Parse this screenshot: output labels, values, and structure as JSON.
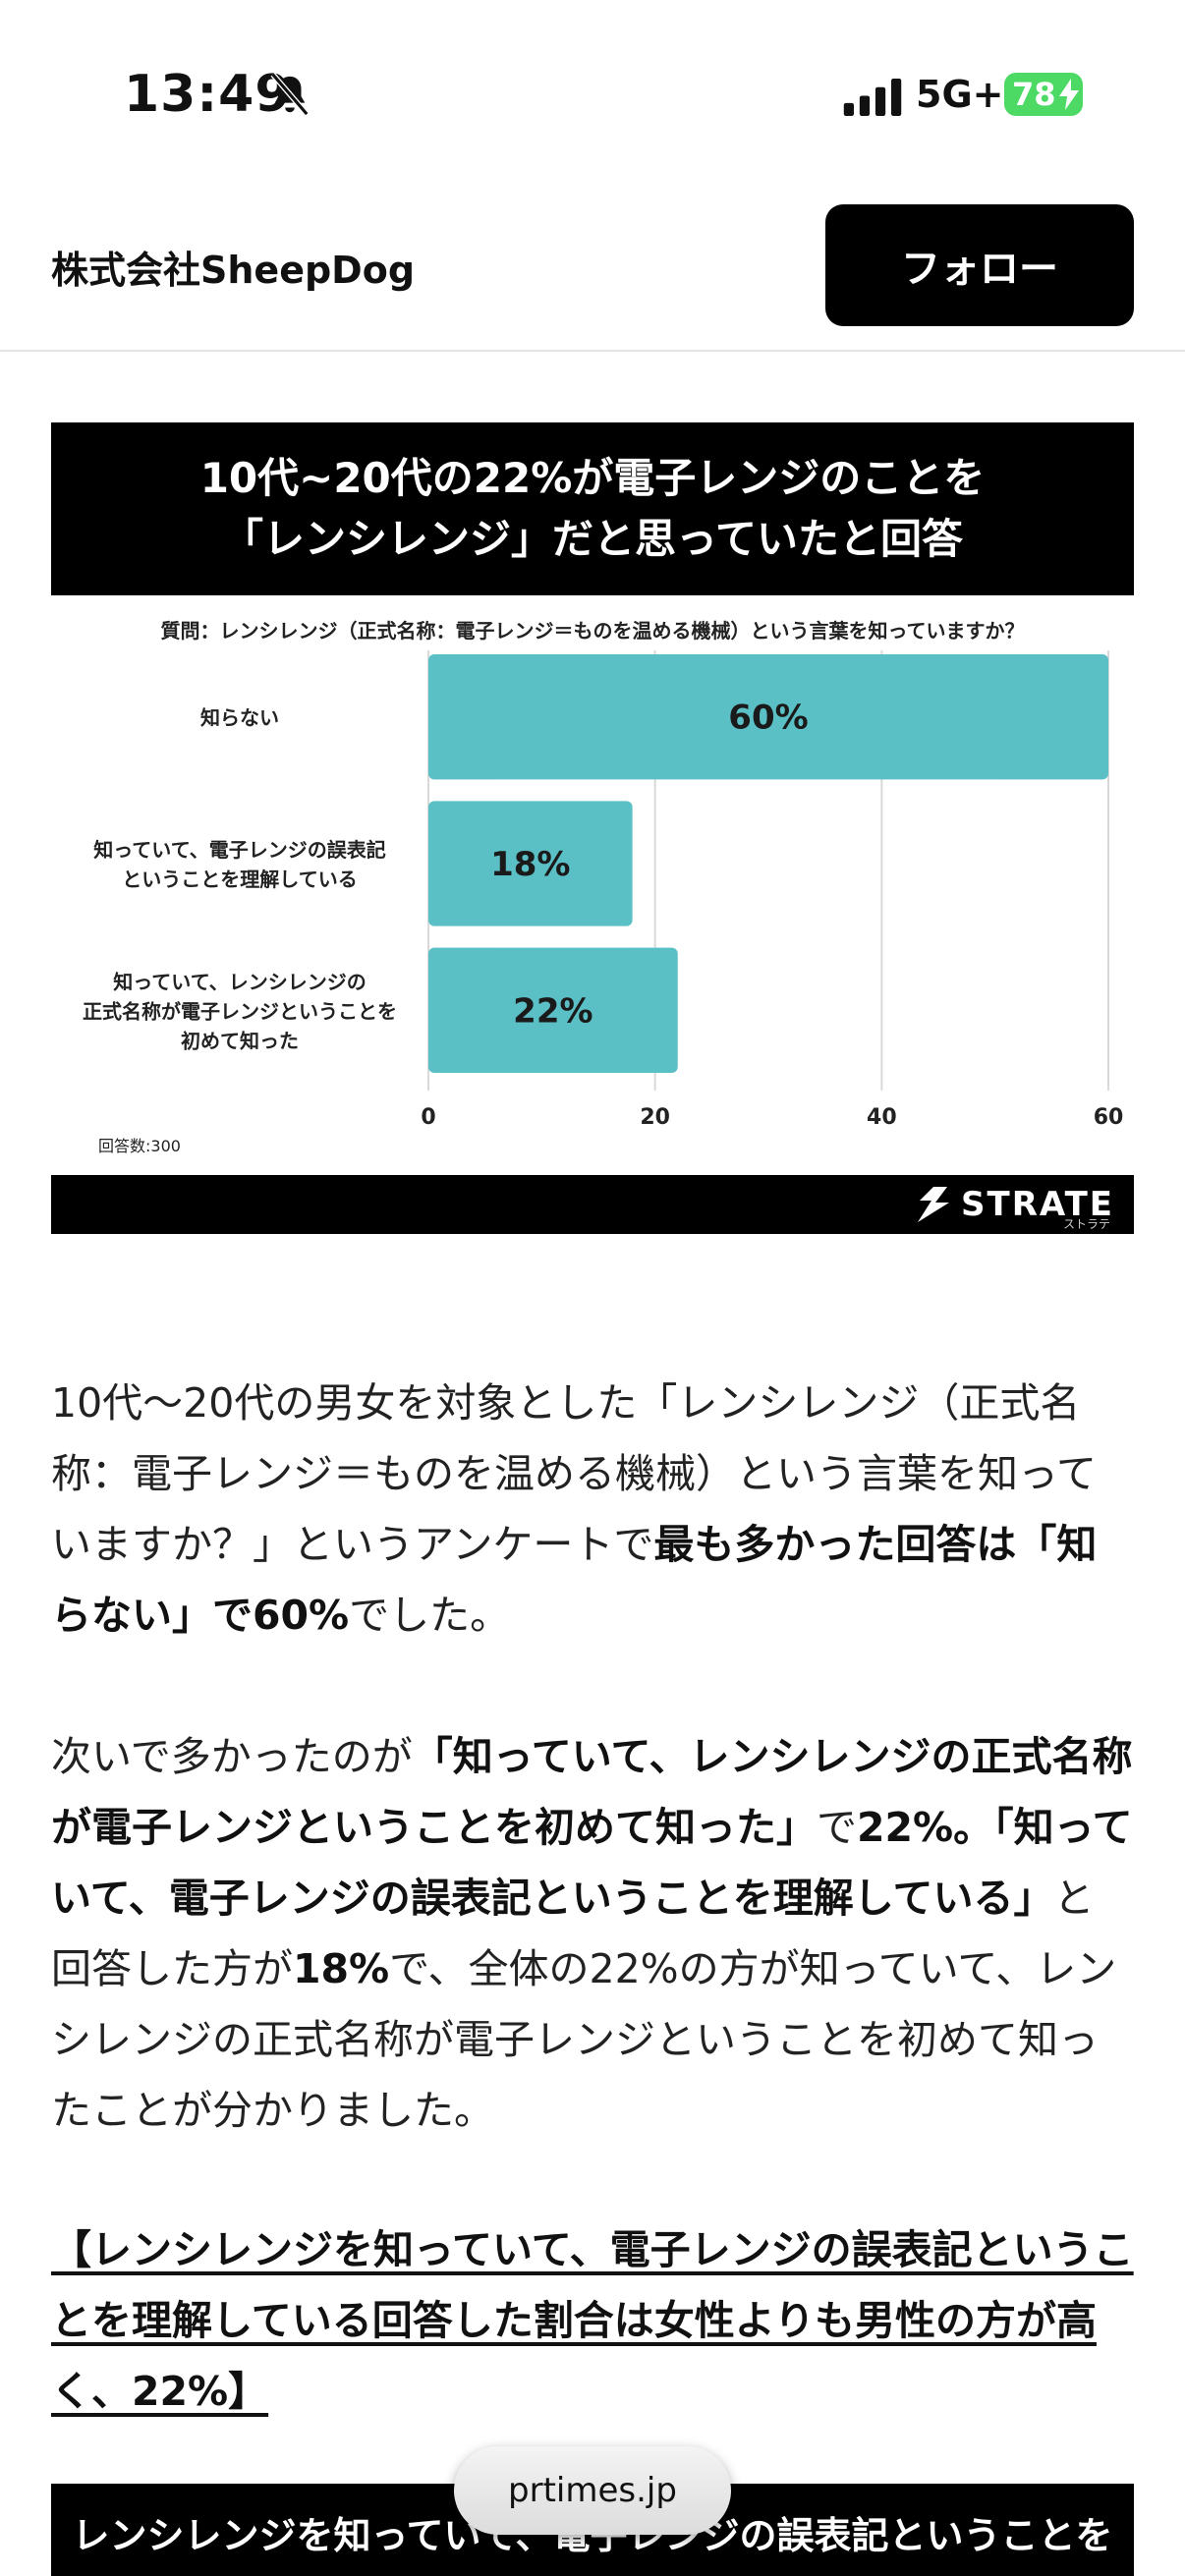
{
  "status": {
    "time": "13:49",
    "network": "5G+",
    "battery": "78"
  },
  "header": {
    "company": "株式会社SheepDog",
    "follow_label": "フォロー"
  },
  "figure": {
    "title_line1": "10代~20代の22%が電子レンジのことを",
    "title_line2": "「レンシレンジ」だと思っていたと回答",
    "question": "質問：レンシレンジ（正式名称：電子レンジ＝ものを温める機械）という言葉を知っていますか？",
    "respondents": "回答数:300",
    "logo_text": "STRATE",
    "logo_sub": "ストラテ",
    "bar_color": "#5bbfc6"
  },
  "chart_data": {
    "type": "bar",
    "orientation": "horizontal",
    "categories": [
      [
        "知らない"
      ],
      [
        "知っていて、電子レンジの誤表記",
        "ということを理解している"
      ],
      [
        "知っていて、レンシレンジの",
        "正式名称が電子レンジということを",
        "初めて知った"
      ]
    ],
    "values": [
      60,
      18,
      22
    ],
    "data_labels": [
      "60%",
      "18%",
      "22%"
    ],
    "xlim": [
      0,
      60
    ],
    "xticks": [
      "0",
      "20",
      "40",
      "60"
    ],
    "grid": true
  },
  "article": {
    "p1_text": "10代〜20代の男女を対象とした「レンシレンジ（正式名称：電子レンジ＝ものを温める機械）という言葉を知っていますか？」というアンケートで",
    "p1_bold": "最も多かった回答は「知らない」で60%",
    "p1_end": "でした。",
    "p2_a": "次いで多かったのが",
    "p2_b": "「知っていて、レンシレンジの正式名称が電子レンジということを初めて知った」",
    "p2_c": "で",
    "p2_d": "22%。「知っていて、電子レンジの誤表記ということを理解している」",
    "p2_e": "と回答した方が",
    "p2_f": "18%",
    "p2_g": "で、全体の22%の方が知っていて、レンシレンジの正式名称が電子レンジということを初めて知ったことが分かりました。",
    "heading": "【レンシレンジを知っていて、電子レンジの誤表記ということを理解している回答した割合は女性よりも男性の方が高く、22%】",
    "second_title": "レンシレンジを知っていて、電子レンジの誤表記ということを"
  },
  "browser": {
    "url": "prtimes.jp"
  }
}
